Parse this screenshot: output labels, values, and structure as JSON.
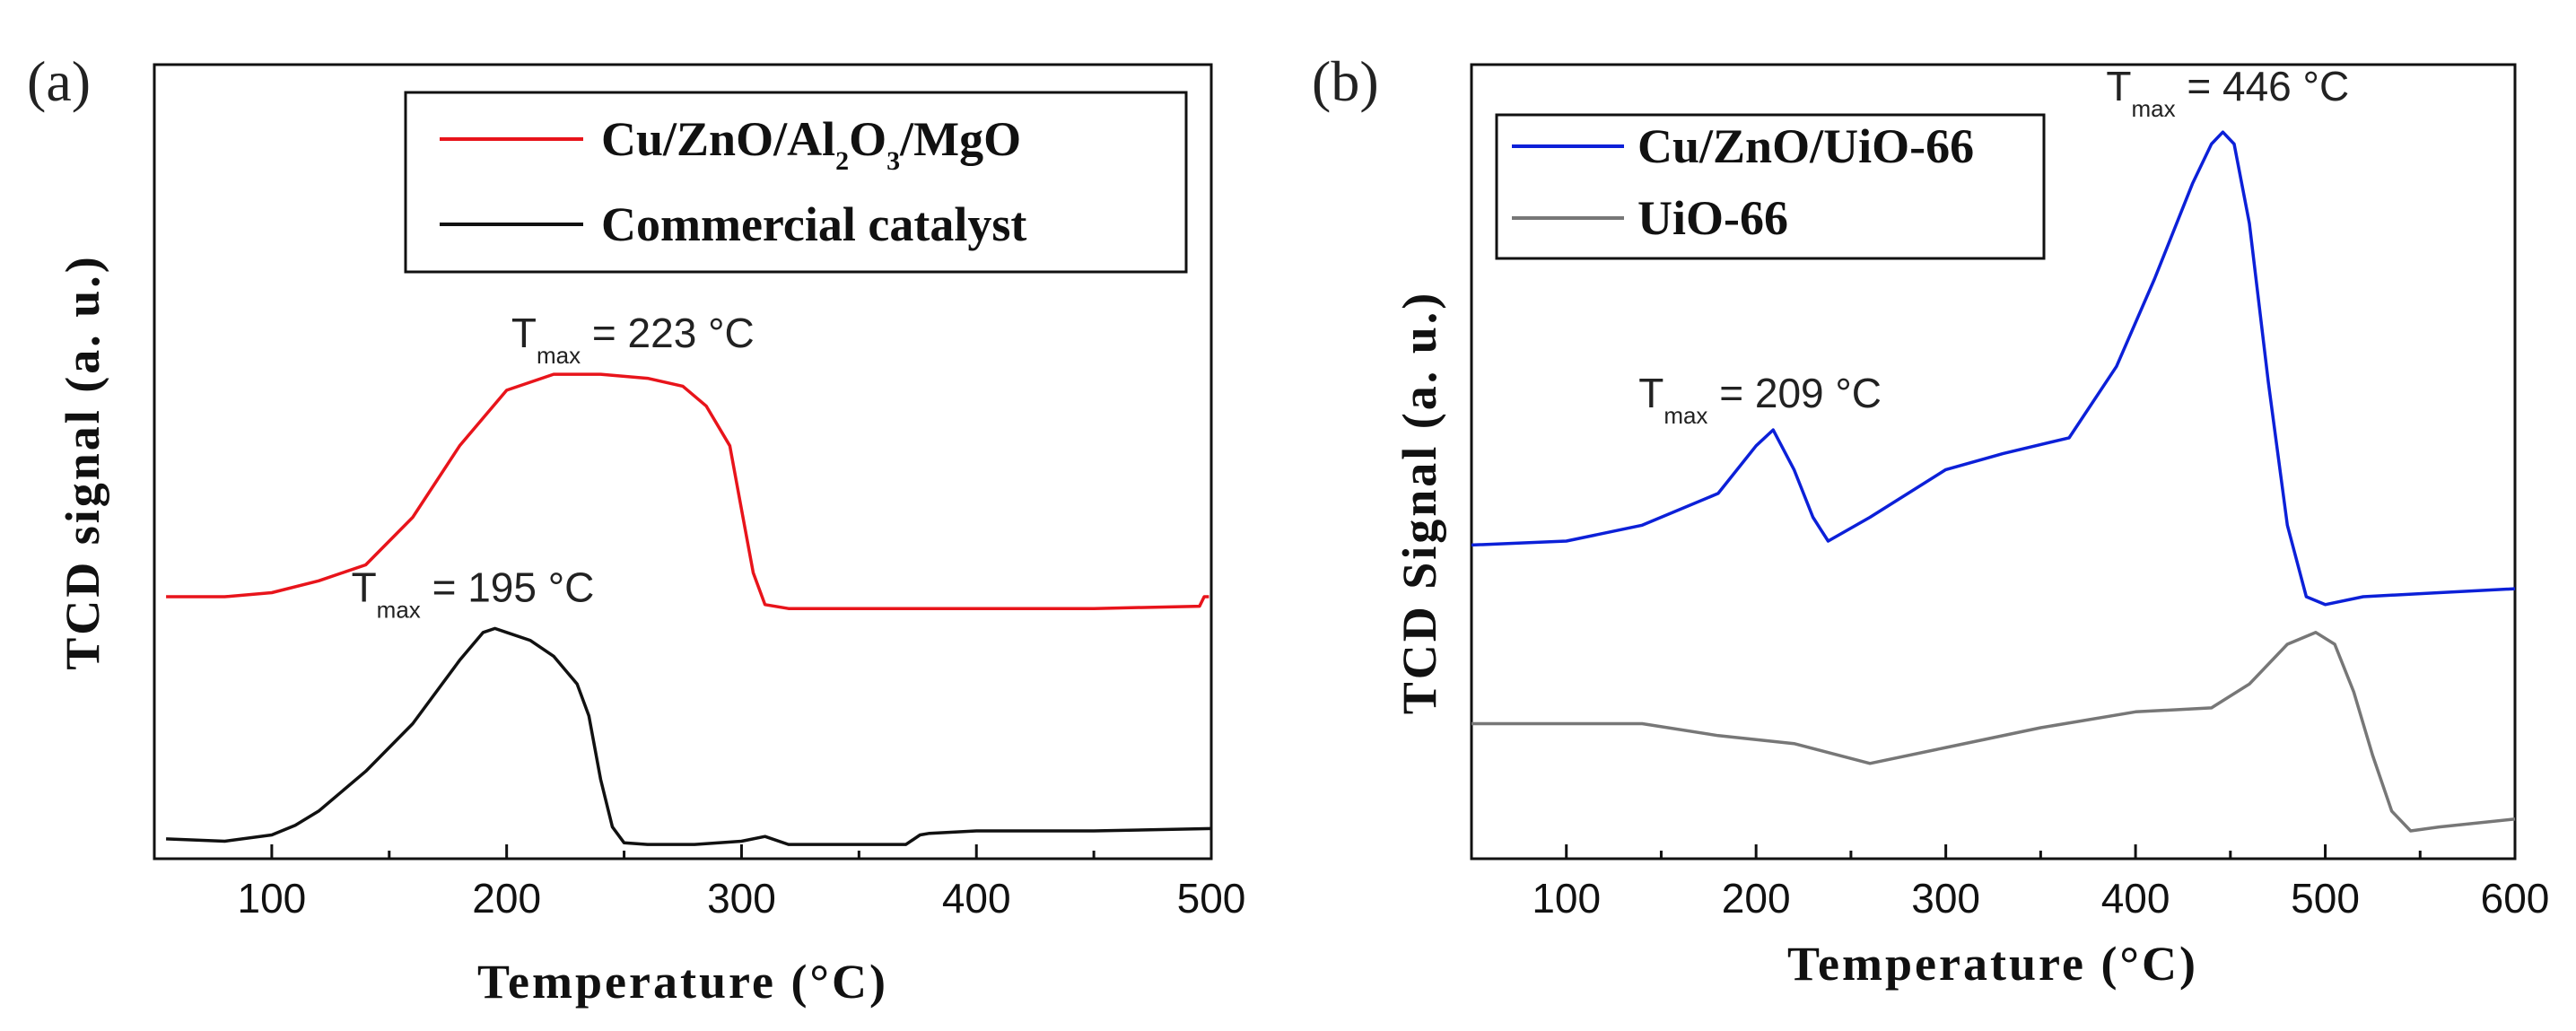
{
  "chart_data": [
    {
      "panel_label": "(a)",
      "type": "line",
      "xlabel": "Temperature (°C)",
      "ylabel": "TCD signal (a. u.)",
      "xlim": [
        50,
        500
      ],
      "ylim": [
        0,
        1
      ],
      "xticks": [
        100,
        200,
        300,
        400,
        500
      ],
      "legend": {
        "position": "top-right"
      },
      "series": [
        {
          "name": "Cu/ZnO/Al2O3/MgO",
          "legend_parts": [
            "Cu/ZnO/Al",
            "2",
            "O",
            "3",
            "/MgO"
          ],
          "color": "#e8141b",
          "x": [
            55,
            80,
            100,
            120,
            140,
            160,
            180,
            200,
            220,
            240,
            260,
            275,
            285,
            295,
            300,
            305,
            310,
            320,
            350,
            400,
            450,
            495,
            497,
            499
          ],
          "y": [
            0.33,
            0.33,
            0.335,
            0.35,
            0.37,
            0.43,
            0.52,
            0.59,
            0.61,
            0.61,
            0.605,
            0.595,
            0.57,
            0.52,
            0.44,
            0.36,
            0.32,
            0.315,
            0.315,
            0.315,
            0.315,
            0.318,
            0.33,
            0.33
          ]
        },
        {
          "name": "Commercial catalyst",
          "color": "#111111",
          "x": [
            55,
            80,
            100,
            110,
            120,
            140,
            160,
            180,
            190,
            195,
            200,
            210,
            220,
            230,
            235,
            240,
            245,
            250,
            260,
            280,
            300,
            310,
            320,
            340,
            370,
            376,
            380,
            400,
            450,
            500
          ],
          "y": [
            0.025,
            0.022,
            0.03,
            0.042,
            0.06,
            0.11,
            0.17,
            0.25,
            0.285,
            0.29,
            0.285,
            0.275,
            0.255,
            0.22,
            0.18,
            0.1,
            0.04,
            0.02,
            0.018,
            0.018,
            0.022,
            0.028,
            0.018,
            0.018,
            0.018,
            0.03,
            0.032,
            0.035,
            0.035,
            0.038
          ]
        }
      ],
      "annotations": [
        {
          "text": "T",
          "sub": "max",
          "rest": " = 223 °C",
          "x": 223,
          "y": 0.61
        },
        {
          "text": "T",
          "sub": "max",
          "rest": " = 195 °C",
          "x": 195,
          "y": 0.29
        }
      ]
    },
    {
      "panel_label": "(b)",
      "type": "line",
      "xlabel": "Temperature (°C)",
      "ylabel": "TCD Signal (a. u.)",
      "xlim": [
        50,
        600
      ],
      "ylim": [
        0,
        1
      ],
      "xticks": [
        100,
        200,
        300,
        400,
        500,
        600
      ],
      "legend": {
        "position": "top-left"
      },
      "series": [
        {
          "name": "Cu/ZnO/UiO-66",
          "color": "#0c20d8",
          "x": [
            50,
            100,
            140,
            180,
            200,
            209,
            220,
            230,
            238,
            260,
            300,
            330,
            365,
            390,
            410,
            430,
            440,
            446,
            452,
            460,
            470,
            480,
            490,
            500,
            520,
            560,
            600
          ],
          "y": [
            0.395,
            0.4,
            0.42,
            0.46,
            0.52,
            0.54,
            0.49,
            0.43,
            0.4,
            0.43,
            0.49,
            0.51,
            0.53,
            0.62,
            0.73,
            0.85,
            0.9,
            0.915,
            0.9,
            0.8,
            0.6,
            0.42,
            0.33,
            0.32,
            0.33,
            0.335,
            0.34
          ]
        },
        {
          "name": "UiO-66",
          "color": "#777777",
          "x": [
            50,
            100,
            140,
            180,
            220,
            260,
            300,
            350,
            400,
            440,
            460,
            480,
            495,
            505,
            515,
            525,
            535,
            545,
            560,
            600
          ],
          "y": [
            0.17,
            0.17,
            0.17,
            0.155,
            0.145,
            0.12,
            0.14,
            0.165,
            0.185,
            0.19,
            0.22,
            0.27,
            0.285,
            0.27,
            0.21,
            0.13,
            0.06,
            0.035,
            0.04,
            0.05
          ]
        }
      ],
      "annotations": [
        {
          "text": "T",
          "sub": "max",
          "rest": " = 209 °C",
          "x": 209,
          "y": 0.54
        },
        {
          "text": "T",
          "sub": "max",
          "rest": " = 446 °C",
          "x": 446,
          "y": 0.915
        }
      ]
    }
  ]
}
